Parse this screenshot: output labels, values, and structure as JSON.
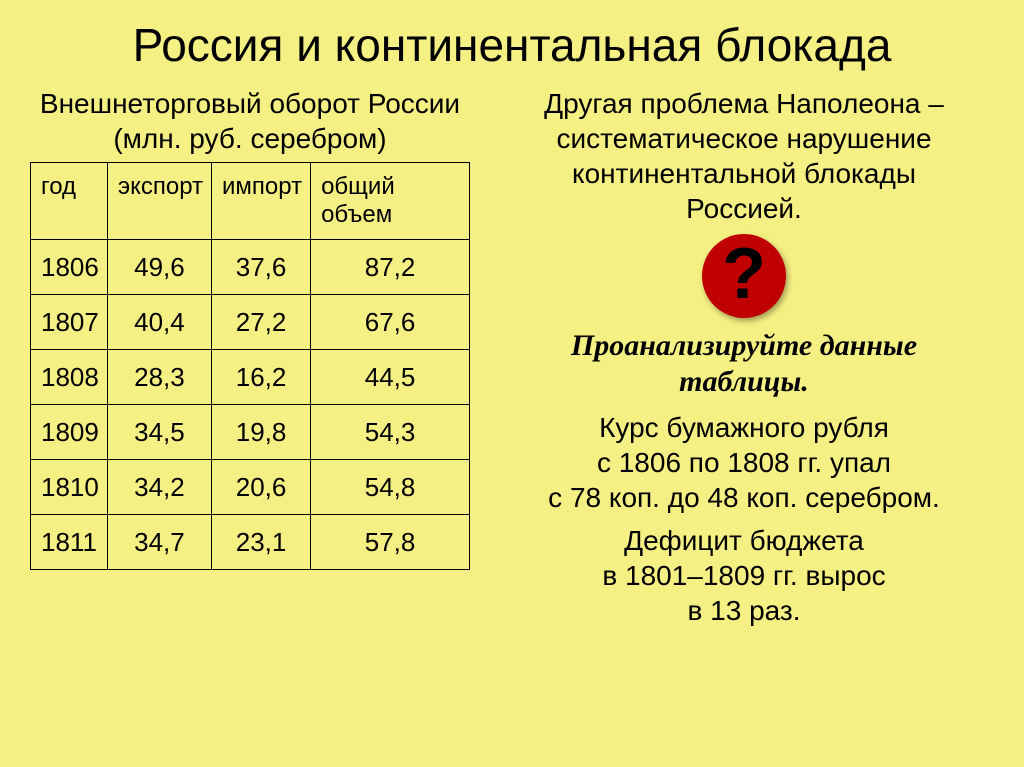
{
  "title": "Россия и континентальная блокада",
  "table": {
    "caption_line1": "Внешнеторговый оборот России",
    "caption_line2": "(млн. руб. серебром)",
    "columns": [
      "год",
      "экспорт",
      "импорт",
      "общий объем"
    ],
    "rows": [
      [
        "1806",
        "49,6",
        "37,6",
        "87,2"
      ],
      [
        "1807",
        "40,4",
        "27,2",
        "67,6"
      ],
      [
        "1808",
        "28,3",
        "16,2",
        "44,5"
      ],
      [
        "1809",
        "34,5",
        "19,8",
        "54,3"
      ],
      [
        "1810",
        "34,2",
        "20,6",
        "54,8"
      ],
      [
        "1811",
        "34,7",
        "23,1",
        "57,8"
      ]
    ]
  },
  "right": {
    "intro_line1": "Другая проблема Наполеона –",
    "intro_line2": "систематическое нарушение",
    "intro_line3": "континентальной блокады",
    "intro_line4": "Россией.",
    "question_glyph": "?",
    "emph_line1": "Проанализируйте данные",
    "emph_line2": "таблицы.",
    "para1_line1": "Курс бумажного рубля",
    "para1_line2": "с 1806 по 1808 гг. упал",
    "para1_line3": "с 78 коп. до 48 коп. серебром.",
    "para2_line1": "Дефицит бюджета",
    "para2_line2": "в 1801–1809 гг. вырос",
    "para2_line3": "в 13 раз."
  },
  "colors": {
    "background": "#f5f083",
    "text": "#000000",
    "icon_bg": "#c00000"
  }
}
